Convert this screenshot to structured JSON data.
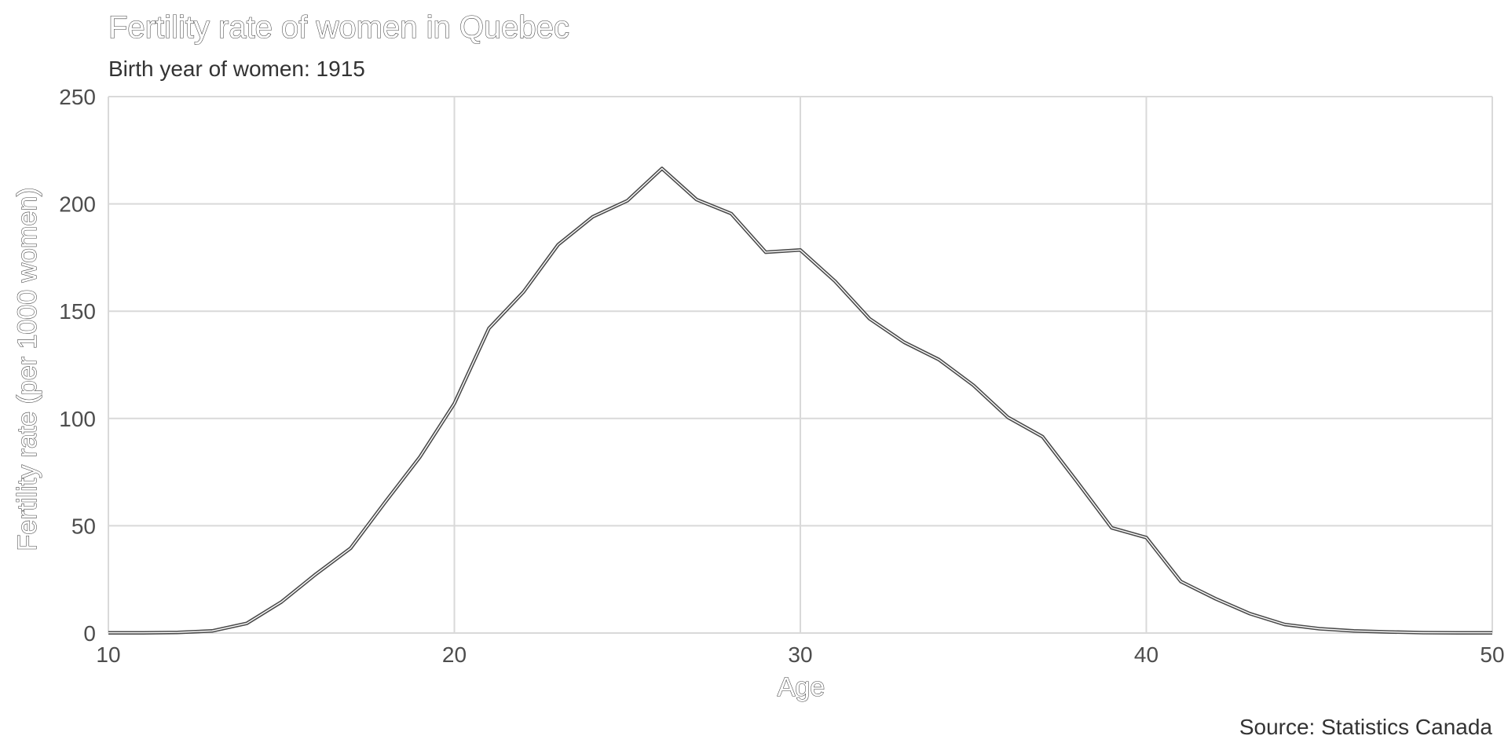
{
  "chart_data": {
    "type": "line",
    "title": "Fertility rate of women in Quebec",
    "subtitle": "Birth year of women: 1915",
    "xlabel": "Age",
    "ylabel": "Fertility rate (per 1000 women)",
    "caption": "Source: Statistics Canada",
    "xlim": [
      10,
      50
    ],
    "ylim": [
      0,
      250
    ],
    "x_ticks": [
      10,
      20,
      30,
      40,
      50
    ],
    "y_ticks": [
      0,
      50,
      100,
      150,
      200,
      250
    ],
    "grid": true,
    "series": [
      {
        "x": [
          10,
          11,
          12,
          13,
          14,
          15,
          16,
          17,
          18,
          19,
          20,
          21,
          22,
          23,
          24,
          25,
          26,
          27,
          28,
          29,
          30,
          31,
          32,
          33,
          34,
          35,
          36,
          37,
          38,
          39,
          40,
          41,
          42,
          43,
          44,
          45,
          46,
          47,
          48,
          49,
          50
        ],
        "values": [
          0.1,
          0.1,
          0.3,
          1.0,
          4.5,
          14.5,
          27.5,
          39.5,
          61.0,
          82.0,
          107.0,
          142.0,
          159.0,
          181.0,
          194.0,
          201.5,
          216.5,
          202.0,
          195.5,
          177.5,
          178.5,
          164.0,
          146.5,
          135.5,
          127.5,
          115.5,
          100.5,
          91.5,
          70.5,
          49.0,
          44.5,
          24.0,
          16.0,
          9.0,
          4.0,
          2.0,
          1.0,
          0.5,
          0.2,
          0.1,
          0.1
        ],
        "color": "#4a4a4a"
      }
    ]
  }
}
